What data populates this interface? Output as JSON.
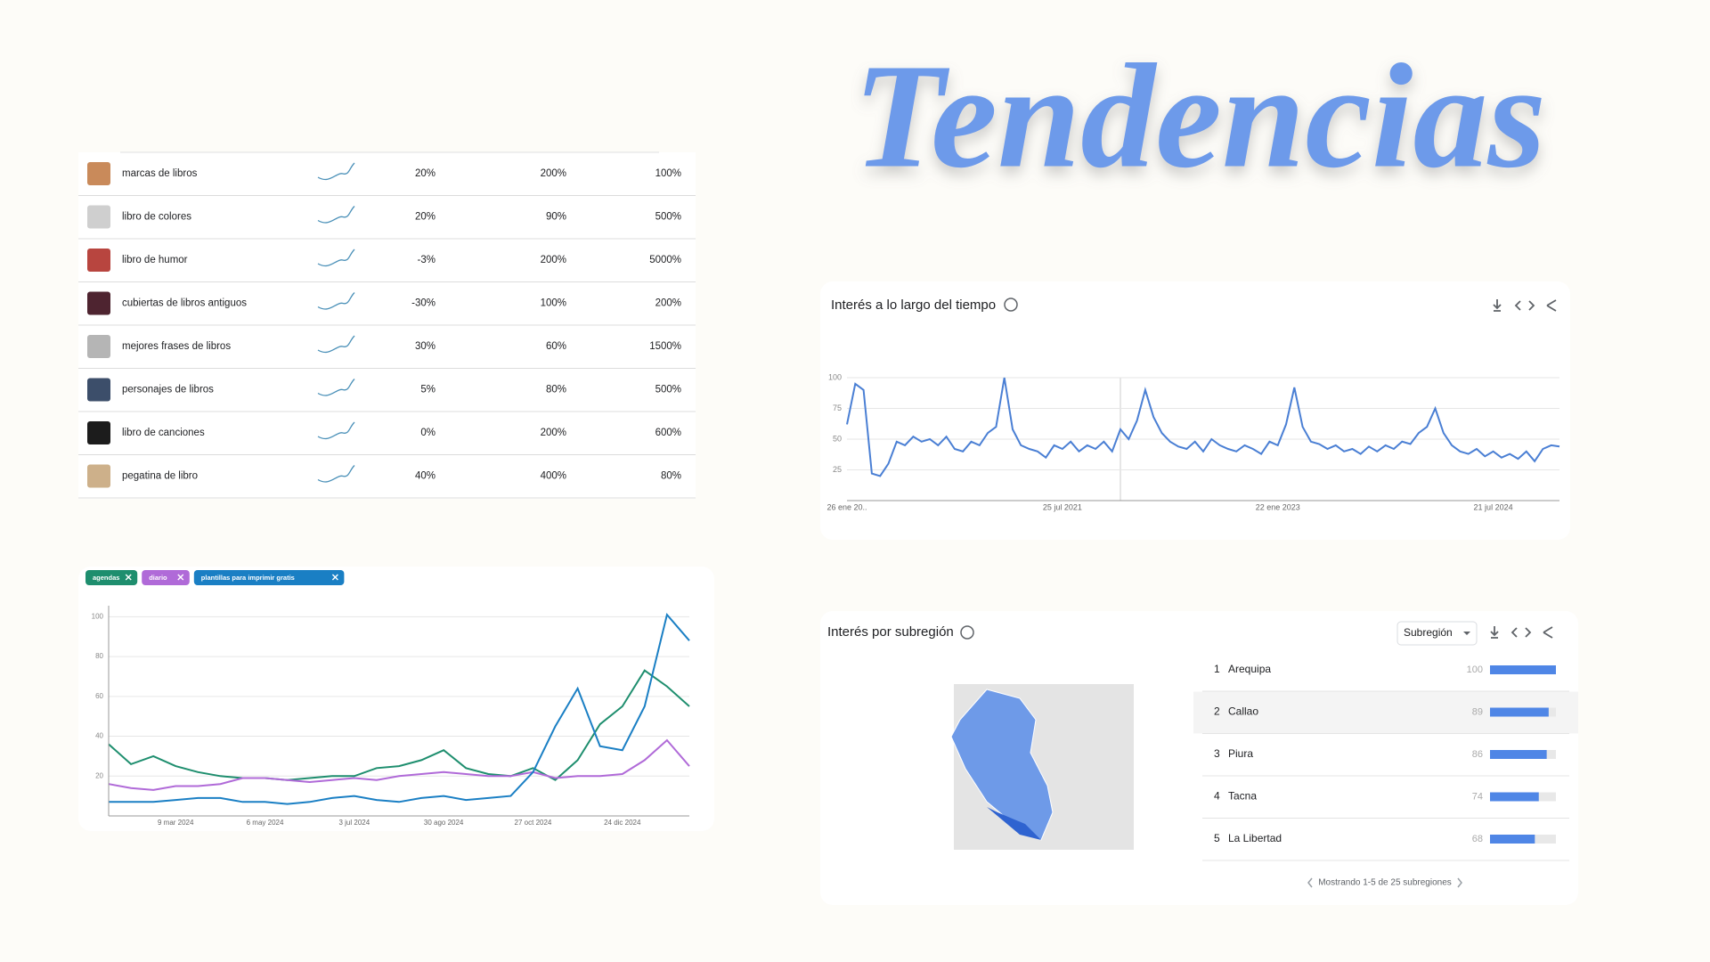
{
  "title": "Tendencias",
  "table": {
    "rows": [
      [
        "marcas de libros",
        "20%",
        "200%",
        "100%"
      ],
      [
        "libro de colores",
        "20%",
        "90%",
        "500%"
      ],
      [
        "libro de humor",
        "-3%",
        "200%",
        "5000%"
      ],
      [
        "cubiertas de libros antiguos",
        "-30%",
        "100%",
        "200%"
      ],
      [
        "mejores frases de libros",
        "30%",
        "60%",
        "1500%"
      ],
      [
        "personajes de libros",
        "5%",
        "80%",
        "500%"
      ],
      [
        "libro de canciones",
        "0%",
        "200%",
        "600%"
      ],
      [
        "pegatina de libro",
        "40%",
        "400%",
        "80%"
      ]
    ]
  },
  "chart_data": [
    {
      "type": "line",
      "title": "Interés a lo largo del tiempo",
      "categories": [
        "26 ene 20..",
        null,
        null,
        null,
        null,
        null,
        null,
        null,
        null,
        null,
        null,
        null,
        null,
        null,
        null,
        null,
        null,
        null,
        null,
        null,
        null,
        null,
        null,
        null,
        null,
        null,
        "25 jul 2021",
        null,
        null,
        null,
        null,
        null,
        null,
        null,
        null,
        null,
        null,
        null,
        null,
        null,
        null,
        null,
        null,
        null,
        null,
        null,
        null,
        null,
        null,
        null,
        null,
        null,
        "22 ene 2023",
        null,
        null,
        null,
        null,
        null,
        null,
        null,
        null,
        null,
        null,
        null,
        null,
        null,
        null,
        null,
        null,
        null,
        null,
        null,
        null,
        null,
        null,
        null,
        null,
        null,
        "21 jul 2024",
        null,
        null,
        null,
        null,
        null,
        null,
        null,
        null
      ],
      "series": [
        {
          "name": "Interés",
          "color": "#4a7fd4",
          "values": [
            62,
            95,
            90,
            22,
            20,
            30,
            48,
            45,
            52,
            48,
            50,
            45,
            52,
            42,
            40,
            48,
            45,
            55,
            60,
            100,
            58,
            45,
            42,
            40,
            35,
            45,
            42,
            48,
            40,
            45,
            42,
            48,
            40,
            58,
            50,
            65,
            90,
            68,
            55,
            48,
            44,
            42,
            48,
            40,
            50,
            45,
            42,
            40,
            45,
            42,
            38,
            48,
            45,
            62,
            92,
            60,
            48,
            46,
            42,
            45,
            40,
            42,
            38,
            44,
            40,
            45,
            42,
            48,
            46,
            55,
            60,
            75,
            55,
            45,
            40,
            38,
            42,
            36,
            40,
            35,
            38,
            34,
            40,
            32,
            42,
            45,
            44
          ]
        }
      ],
      "ylim": [
        0,
        100
      ],
      "yticks": [
        25,
        50,
        75,
        100
      ],
      "grid": true
    },
    {
      "type": "line",
      "categories": [
        null,
        null,
        null,
        "9 mar 2024",
        null,
        null,
        null,
        "6 may 2024",
        null,
        null,
        null,
        "3 jul 2024",
        null,
        null,
        null,
        "30 ago 2024",
        null,
        null,
        null,
        "27 oct 2024",
        null,
        null,
        null,
        "24 dic 2024",
        null,
        null,
        null
      ],
      "series": [
        {
          "name": "agendas",
          "color": "#1e8e6e",
          "values": [
            36,
            26,
            30,
            25,
            22,
            20,
            19,
            19,
            18,
            19,
            20,
            20,
            24,
            25,
            28,
            33,
            24,
            21,
            20,
            24,
            18,
            28,
            46,
            55,
            73,
            65,
            55
          ]
        },
        {
          "name": "diario",
          "color": "#b06ad8",
          "values": [
            16,
            14,
            13,
            15,
            15,
            16,
            19,
            19,
            18,
            17,
            18,
            19,
            18,
            20,
            21,
            22,
            21,
            20,
            20,
            22,
            19,
            20,
            20,
            21,
            28,
            38,
            25
          ]
        },
        {
          "name": "plantillas para imprimir gratis",
          "color": "#1a7fc4",
          "values": [
            7,
            7,
            7,
            8,
            9,
            9,
            7,
            7,
            6,
            7,
            9,
            10,
            8,
            7,
            9,
            10,
            8,
            9,
            10,
            22,
            45,
            64,
            35,
            33,
            55,
            101,
            88
          ]
        }
      ],
      "ylim": [
        0,
        110
      ],
      "yticks": [
        20,
        40,
        60,
        80,
        100
      ],
      "grid": true
    },
    {
      "type": "hbar",
      "title": "Interés por subregión",
      "dropdown": "Subregión",
      "ranks": [
        1,
        2,
        3,
        4,
        5
      ],
      "categories": [
        "Arequipa",
        "Callao",
        "Piura",
        "Tacna",
        "La Libertad"
      ],
      "values": [
        100,
        89,
        86,
        74,
        68
      ],
      "color": "#4f86e6",
      "xlim": [
        0,
        100
      ],
      "footer": "Mostrando 1-5 de 25 subregiones"
    }
  ]
}
